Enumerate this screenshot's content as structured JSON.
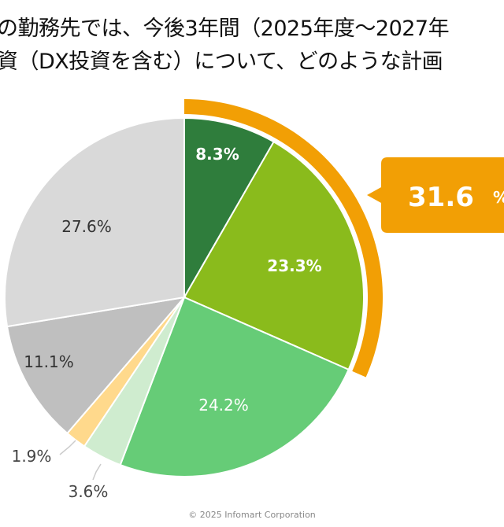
{
  "chart_data": {
    "type": "pie",
    "title_lines": [
      "の勤務先では、今後3年間（2025年度～2027年",
      "資（DX投資を含む）について、どのような計画"
    ],
    "values": [
      8.3,
      23.3,
      24.2,
      3.6,
      1.9,
      11.1,
      27.6
    ],
    "labels": [
      "8.3%",
      "23.3%",
      "24.2%",
      "3.6%",
      "1.9%",
      "11.1%",
      "27.6%"
    ],
    "colors": [
      "#2f7d3c",
      "#8abb1c",
      "#66cc77",
      "#cfeccf",
      "#ffd98c",
      "#bfbfbf",
      "#d9d9d9"
    ],
    "label_colors": [
      "#ffffff",
      "#ffffff",
      "#ffffff",
      "#444444",
      "#444444",
      "#333333",
      "#333333"
    ],
    "highlight": {
      "value": "31.6",
      "unit": "%",
      "covers_slices": [
        0,
        1
      ],
      "color": "#f29f05"
    }
  },
  "footer": "© 2025 Infomart Corporation"
}
